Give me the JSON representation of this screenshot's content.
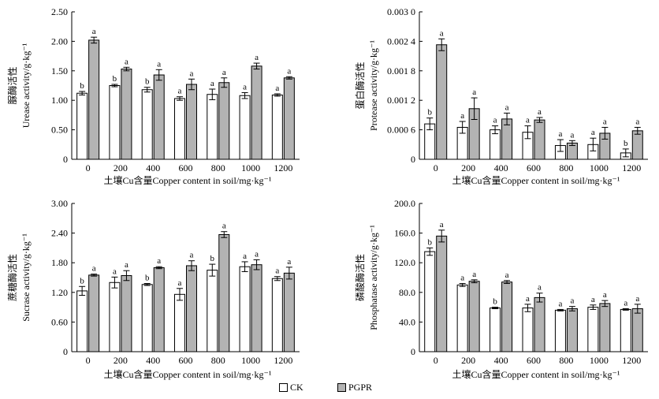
{
  "colors": {
    "CK": "#ffffff",
    "PGPR": "#b3b3b3",
    "stroke": "#000000"
  },
  "legend": {
    "ck_label": "CK",
    "pgpr_label": "PGPR"
  },
  "chart_data": [
    {
      "type": "bar",
      "xlabel": "土壤Cu含量Copper content in soil/mg·kg⁻¹",
      "ylabel_cn": "脲酶活性",
      "ylabel_en": "Urease activity/g·kg⁻¹",
      "categories": [
        "0",
        "200",
        "400",
        "600",
        "800",
        "1000",
        "1200"
      ],
      "ylim": [
        0,
        2.5
      ],
      "yticks": [
        "0",
        "0.50",
        "1.00",
        "1.50",
        "2.00",
        "2.50"
      ],
      "series": [
        {
          "name": "CK",
          "values": [
            1.12,
            1.25,
            1.18,
            1.03,
            1.1,
            1.08,
            1.09
          ],
          "errors": [
            0.03,
            0.02,
            0.04,
            0.03,
            0.09,
            0.05,
            0.02
          ],
          "labels": [
            "b",
            "b",
            "b",
            "a",
            "a",
            "a",
            "a"
          ]
        },
        {
          "name": "PGPR",
          "values": [
            2.02,
            1.53,
            1.43,
            1.27,
            1.3,
            1.58,
            1.38
          ],
          "errors": [
            0.05,
            0.03,
            0.09,
            0.09,
            0.08,
            0.05,
            0.02
          ],
          "labels": [
            "a",
            "a",
            "a",
            "a",
            "a",
            "a",
            "a"
          ]
        }
      ]
    },
    {
      "type": "bar",
      "xlabel": "土壤Cu含量Copper content in soil/mg·kg⁻¹",
      "ylabel_cn": "蛋白酶活性",
      "ylabel_en": "Protease activity/g·kg⁻¹",
      "categories": [
        "0",
        "200",
        "400",
        "600",
        "800",
        "1000",
        "1200"
      ],
      "ylim": [
        0,
        0.003
      ],
      "yticks": [
        "0",
        "0.000 6",
        "0.001 2",
        "0.001 8",
        "0.002 4",
        "0.003 0"
      ],
      "series": [
        {
          "name": "CK",
          "values": [
            0.00072,
            0.00065,
            0.0006,
            0.00055,
            0.00028,
            0.0003,
            0.00013
          ],
          "errors": [
            0.00012,
            0.00012,
            8e-05,
            0.00013,
            0.00012,
            0.00013,
            8e-05
          ],
          "labels": [
            "b",
            "a",
            "a",
            "a",
            "a",
            "a",
            "b"
          ]
        },
        {
          "name": "PGPR",
          "values": [
            0.00233,
            0.00103,
            0.00082,
            0.0008,
            0.00033,
            0.00053,
            0.00058
          ],
          "errors": [
            0.00012,
            0.00022,
            0.00012,
            5e-05,
            5e-05,
            0.00012,
            7e-05
          ],
          "labels": [
            "a",
            "a",
            "a",
            "a",
            "a",
            "a",
            "a"
          ]
        }
      ]
    },
    {
      "type": "bar",
      "xlabel": "土壤Cu含量Copper content in soil/mg·kg⁻¹",
      "ylabel_cn": "蔗糖酶活性",
      "ylabel_en": "Sucrase activity/g·kg⁻¹",
      "categories": [
        "0",
        "200",
        "400",
        "600",
        "800",
        "1000",
        "1200"
      ],
      "ylim": [
        0,
        3.0
      ],
      "yticks": [
        "0",
        "0.60",
        "1.20",
        "1.80",
        "2.40",
        "3.00"
      ],
      "series": [
        {
          "name": "CK",
          "values": [
            1.23,
            1.4,
            1.36,
            1.16,
            1.65,
            1.72,
            1.48
          ],
          "errors": [
            0.09,
            0.11,
            0.02,
            0.12,
            0.12,
            0.1,
            0.04
          ],
          "labels": [
            "b",
            "a",
            "b",
            "a",
            "b",
            "a",
            "a"
          ]
        },
        {
          "name": "PGPR",
          "values": [
            1.55,
            1.54,
            1.7,
            1.74,
            2.37,
            1.76,
            1.59
          ],
          "errors": [
            0.02,
            0.1,
            0.02,
            0.1,
            0.06,
            0.1,
            0.12
          ],
          "labels": [
            "a",
            "a",
            "a",
            "a",
            "a",
            "a",
            "a"
          ]
        }
      ]
    },
    {
      "type": "bar",
      "xlabel": "土壤Cu含量Copper content in soil/mg·kg⁻¹",
      "ylabel_cn": "磷酸酶活性",
      "ylabel_en": "Phosphatase activity/g·kg⁻¹",
      "categories": [
        "0",
        "200",
        "400",
        "600",
        "800",
        "1000",
        "1200"
      ],
      "ylim": [
        0,
        200
      ],
      "yticks": [
        "0",
        "40.0",
        "80.0",
        "120.0",
        "160.0",
        "200.0"
      ],
      "series": [
        {
          "name": "CK",
          "values": [
            135,
            90,
            59,
            59,
            56,
            60,
            57
          ],
          "errors": [
            5,
            2,
            1,
            5,
            1,
            3,
            1
          ],
          "labels": [
            "b",
            "a",
            "b",
            "a",
            "a",
            "a",
            "a"
          ]
        },
        {
          "name": "PGPR",
          "values": [
            156,
            95,
            94,
            73,
            58,
            65,
            58
          ],
          "errors": [
            8,
            2,
            2,
            6,
            3,
            4,
            6
          ],
          "labels": [
            "a",
            "a",
            "a",
            "a",
            "a",
            "a",
            "a"
          ]
        }
      ]
    }
  ]
}
